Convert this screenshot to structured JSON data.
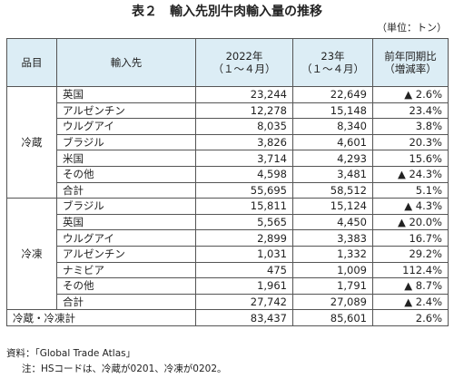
{
  "title": "表２　輸入先別牛肉輸入量の推移",
  "unit": "（単位：トン）",
  "table": {
    "header": [
      [
        "品目"
      ],
      [
        "輸入先"
      ],
      [
        "2022年",
        "（１～４月）"
      ],
      [
        "23年",
        "（１～４月）"
      ],
      [
        "前年同期比",
        "（増減率）"
      ]
    ],
    "groups": [
      {
        "label": "冷蔵",
        "rows": [
          [
            "英国",
            "23,244",
            "22,649",
            "▲ 2.6%"
          ],
          [
            "アルゼンチン",
            "12,278",
            "15,148",
            "23.4%"
          ],
          [
            "ウルグアイ",
            "8,035",
            "8,340",
            "3.8%"
          ],
          [
            "ブラジル",
            "3,826",
            "4,601",
            "20.3%"
          ],
          [
            "米国",
            "3,714",
            "4,293",
            "15.6%"
          ],
          [
            "その他",
            "4,598",
            "3,481",
            "▲ 24.3%"
          ],
          [
            "合計",
            "55,695",
            "58,512",
            "5.1%"
          ]
        ]
      },
      {
        "label": "冷凍",
        "rows": [
          [
            "ブラジル",
            "15,811",
            "15,124",
            "▲ 4.3%"
          ],
          [
            "英国",
            "5,565",
            "4,450",
            "▲ 20.0%"
          ],
          [
            "ウルグアイ",
            "2,899",
            "3,383",
            "16.7%"
          ],
          [
            "アルゼンチン",
            "1,031",
            "1,332",
            "29.2%"
          ],
          [
            "ナミビア",
            "475",
            "1,009",
            "112.4%"
          ],
          [
            "その他",
            "1,961",
            "1,791",
            "▲ 8.7%"
          ],
          [
            "合計",
            "27,742",
            "27,089",
            "▲ 2.4%"
          ]
        ]
      }
    ],
    "total": [
      "冷蔵・冷凍計",
      "83,437",
      "85,601",
      "2.6%"
    ]
  },
  "notes": [
    "資料：「Global Trade Atlas」",
    "注：HSコードは、冷蔵が0201、冷凍が0202。"
  ]
}
